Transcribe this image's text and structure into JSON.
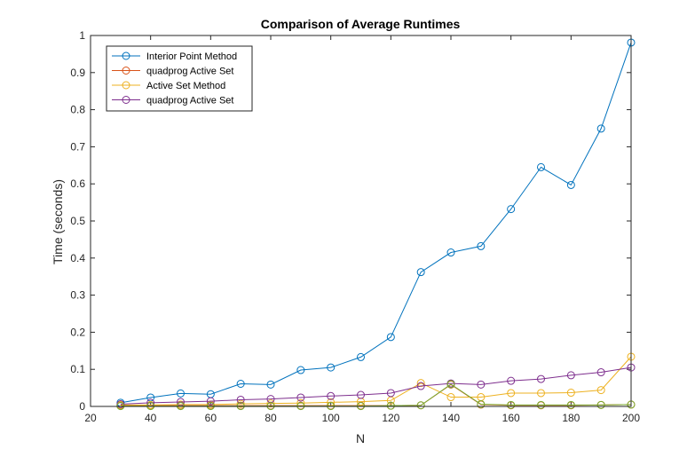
{
  "chart_data": {
    "type": "line",
    "title": "Comparison of Average Runtimes",
    "xlabel": "N",
    "ylabel": "Time (seconds)",
    "xlim": [
      20,
      200
    ],
    "ylim": [
      0,
      1
    ],
    "xticks": [
      20,
      40,
      60,
      80,
      100,
      120,
      140,
      160,
      180,
      200
    ],
    "yticks": [
      0,
      0.1,
      0.2,
      0.3,
      0.4,
      0.5,
      0.6,
      0.7,
      0.8,
      0.9,
      1
    ],
    "ytick_labels": [
      "0",
      "0.1",
      "0.2",
      "0.3",
      "0.4",
      "0.5",
      "0.6",
      "0.7",
      "0.8",
      "0.9",
      "1"
    ],
    "grid": false,
    "legend_position": "top-left",
    "x": [
      30,
      40,
      50,
      60,
      70,
      80,
      90,
      100,
      110,
      120,
      130,
      140,
      150,
      160,
      170,
      180,
      190,
      200
    ],
    "series": [
      {
        "name": "Interior Point Method",
        "color": "#0072BD",
        "values": [
          0.01,
          0.024,
          0.035,
          0.033,
          0.061,
          0.059,
          0.098,
          0.105,
          0.133,
          0.187,
          0.362,
          0.415,
          0.432,
          0.532,
          0.645,
          0.597,
          0.749,
          0.981
        ]
      },
      {
        "name": "quadprog Active Set",
        "color": "#D95319",
        "values": [
          0.002,
          0.002,
          0.002,
          0.002,
          0.002,
          0.002,
          0.002,
          0.002,
          0.002,
          0.002,
          0.003,
          0.059,
          0.005,
          0.003,
          0.003,
          0.003,
          0.004,
          0.005
        ]
      },
      {
        "name": "Active Set Method",
        "color": "#EDB120",
        "values": [
          0.004,
          0.004,
          0.005,
          0.005,
          0.007,
          0.008,
          0.009,
          0.011,
          0.013,
          0.016,
          0.063,
          0.025,
          0.025,
          0.036,
          0.036,
          0.037,
          0.044,
          0.134
        ]
      },
      {
        "name": "quadprog Active Set",
        "color": "#7E2F8E",
        "values": [
          0.006,
          0.01,
          0.012,
          0.014,
          0.018,
          0.02,
          0.024,
          0.028,
          0.031,
          0.036,
          0.055,
          0.062,
          0.059,
          0.069,
          0.074,
          0.084,
          0.092,
          0.105
        ]
      },
      {
        "name": "",
        "color": "#77AC30",
        "values": [
          0.001,
          0.001,
          0.001,
          0.001,
          0.001,
          0.001,
          0.001,
          0.001,
          0.001,
          0.002,
          0.003,
          0.06,
          0.006,
          0.004,
          0.004,
          0.004,
          0.004,
          0.005
        ]
      }
    ]
  }
}
